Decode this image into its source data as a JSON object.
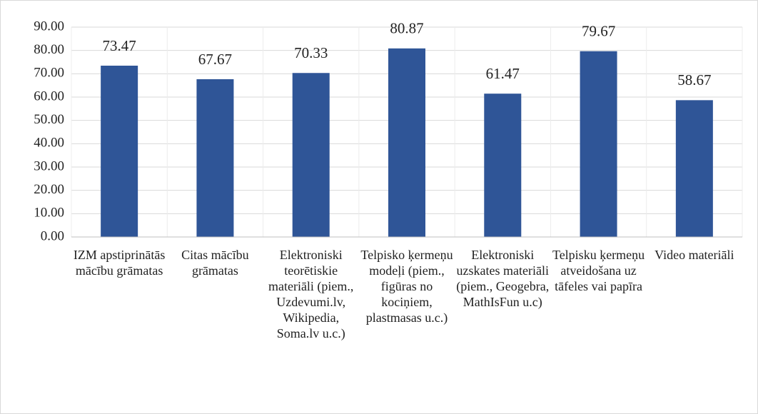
{
  "chart_data": {
    "type": "bar",
    "categories": [
      "IZM apstiprinātās mācību grāmatas",
      "Citas mācību grāmatas",
      "Elektroniski teorētiskie materiāli (piem., Uzdevumi.lv, Wikipedia, Soma.lv u.c.)",
      "Telpisko ķermeņu modeļi (piem., figūras no kociņiem, plastmasas u.c.)",
      "Elektroniski uzskates materiāli (piem., Geogebra, MathIsFun u.c)",
      "Telpisku ķermeņu atveidošana uz tāfeles vai papīra",
      "Video materiāli"
    ],
    "values": [
      73.47,
      67.67,
      70.33,
      80.87,
      61.47,
      79.67,
      58.67
    ],
    "color": "#2f5597",
    "ylim": [
      0,
      90
    ],
    "yticks": [
      {
        "value": 0,
        "label": "0.00"
      },
      {
        "value": 10,
        "label": "10.00"
      },
      {
        "value": 20,
        "label": "20.00"
      },
      {
        "value": 30,
        "label": "30.00"
      },
      {
        "value": 40,
        "label": "40.00"
      },
      {
        "value": 50,
        "label": "50.00"
      },
      {
        "value": 60,
        "label": "60.00"
      },
      {
        "value": 70,
        "label": "70.00"
      },
      {
        "value": 80,
        "label": "80.00"
      },
      {
        "value": 90,
        "label": "90.00"
      }
    ],
    "grid": true
  }
}
